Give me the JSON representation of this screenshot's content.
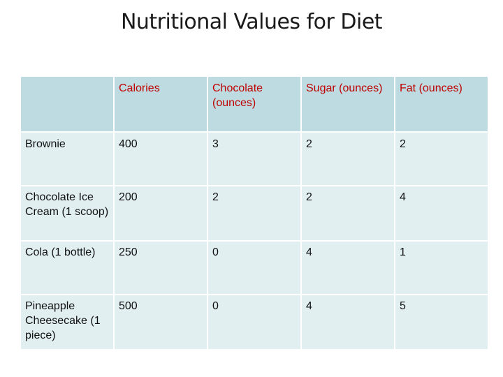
{
  "title": "Nutritional Values for Diet",
  "table": {
    "corner": "",
    "columns": [
      "Calories",
      "Chocolate (ounces)",
      "Sugar (ounces)",
      "Fat (ounces)"
    ],
    "rows": [
      {
        "label": "Brownie",
        "values": [
          "400",
          "3",
          "2",
          "2"
        ]
      },
      {
        "label": "Chocolate Ice Cream (1 scoop)",
        "values": [
          "200",
          "2",
          "2",
          "4"
        ]
      },
      {
        "label": "Cola (1 bottle)",
        "values": [
          "250",
          "0",
          "4",
          "1"
        ]
      },
      {
        "label": "Pineapple Cheesecake (1 piece)",
        "values": [
          "500",
          "0",
          "4",
          "5"
        ]
      }
    ]
  },
  "colors": {
    "header_fill": "#bddbe0",
    "body_fill": "#e1eff1",
    "header_text": "#c00000"
  }
}
